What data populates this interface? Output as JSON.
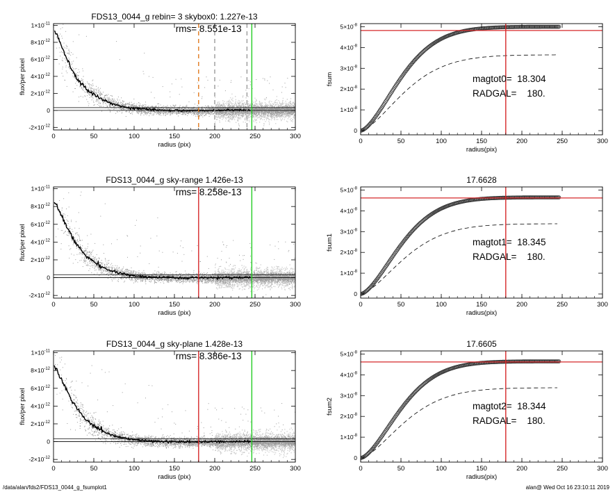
{
  "footer": {
    "path": "/data/alan/fds2/FDS13_0044_g_fsumplot1",
    "user_time": "alan@  Wed Oct 16 23:10:11 2019"
  },
  "colors": {
    "points": "#9a9a9a",
    "profile": "#000000",
    "radgal_line": "#d62728",
    "sky_line": "#22cc22",
    "skybox_dashed": "#e07a1f",
    "curve_marker": "#3a3a3a"
  },
  "chart_data": [
    {
      "type": "scatter",
      "title": "FDS13_0044_g rebin= 3    skybox0:  1.227e-13",
      "annotation": "rms= 8.551e-13",
      "xlabel": "radius (pix)",
      "ylabel": "flux/per pixel",
      "xlim": [
        0,
        300
      ],
      "ylim": [
        -2.3e-12,
        1.02e-11
      ],
      "x_ticks": [
        "0",
        "50",
        "100",
        "150",
        "200",
        "250",
        "300"
      ],
      "y_ticks": [
        {
          "value": -2e-12,
          "mant": "-2×10",
          "exp": "-12"
        },
        {
          "value": 0,
          "mant": "0",
          "exp": ""
        },
        {
          "value": 2e-12,
          "mant": "2×10",
          "exp": "-12"
        },
        {
          "value": 4e-12,
          "mant": "4×10",
          "exp": "-12"
        },
        {
          "value": 6e-12,
          "mant": "6×10",
          "exp": "-12"
        },
        {
          "value": 8e-12,
          "mant": "8×10",
          "exp": "-12"
        },
        {
          "value": 1e-11,
          "mant": "1×10",
          "exp": "-11"
        }
      ],
      "sky_level": 1.227e-13,
      "profile": [
        [
          1,
          9.3e-12
        ],
        [
          5,
          8.7e-12
        ],
        [
          10,
          7.6e-12
        ],
        [
          15,
          6.4e-12
        ],
        [
          20,
          5.4e-12
        ],
        [
          25,
          4.5e-12
        ],
        [
          30,
          3.7e-12
        ],
        [
          35,
          3.1e-12
        ],
        [
          40,
          2.6e-12
        ],
        [
          45,
          2.2e-12
        ],
        [
          50,
          1.85e-12
        ],
        [
          60,
          1.3e-12
        ],
        [
          70,
          9e-13
        ],
        [
          80,
          6e-13
        ],
        [
          90,
          4e-13
        ],
        [
          100,
          2.5e-13
        ],
        [
          120,
          1e-13
        ],
        [
          140,
          2e-14
        ],
        [
          160,
          -2e-14
        ],
        [
          180,
          -2e-14
        ],
        [
          200,
          0
        ],
        [
          220,
          2e-14
        ],
        [
          245,
          3e-14
        ]
      ],
      "vlines": [
        {
          "x": 180,
          "style": "dashed",
          "color": "#e07a1f"
        },
        {
          "x": 200,
          "style": "dashed",
          "color": "#9a9a9a"
        },
        {
          "x": 240,
          "style": "dashed",
          "color": "#9a9a9a"
        },
        {
          "x": 246,
          "style": "solid",
          "color": "#22cc22"
        }
      ],
      "hlines": []
    },
    {
      "type": "line",
      "title": "",
      "annotation": "magtot0=  18.304\nRADGAL=    180.",
      "xlabel": "radius(pix)",
      "ylabel": "fsum",
      "xlim": [
        0,
        300
      ],
      "ylim": [
        -2e-09,
        5.15e-08
      ],
      "x_ticks": [
        "0",
        "50",
        "100",
        "150",
        "200",
        "250",
        "300"
      ],
      "y_ticks": [
        {
          "value": 0,
          "mant": "0",
          "exp": ""
        },
        {
          "value": 1e-08,
          "mant": "1×10",
          "exp": "-8"
        },
        {
          "value": 2e-08,
          "mant": "2×10",
          "exp": "-8"
        },
        {
          "value": 3e-08,
          "mant": "3×10",
          "exp": "-8"
        },
        {
          "value": 4e-08,
          "mant": "4×10",
          "exp": "-8"
        },
        {
          "value": 5e-08,
          "mant": "5×10",
          "exp": "-8"
        }
      ],
      "curve_final": 5e-08,
      "dashed_final": 3.65e-08,
      "vlines": [
        {
          "x": 180,
          "style": "solid",
          "color": "#d62728"
        }
      ],
      "hlines": [
        {
          "y": 4.82e-08,
          "color": "#d62728"
        }
      ]
    },
    {
      "type": "scatter",
      "title": "FDS13_0044_g sky-range  1.426e-13",
      "annotation": "rms= 8.258e-13",
      "xlabel": "radius (pix)",
      "ylabel": "flux/per pixel",
      "xlim": [
        0,
        300
      ],
      "ylim": [
        -2.3e-12,
        1.02e-11
      ],
      "x_ticks": [
        "0",
        "50",
        "100",
        "150",
        "200",
        "250",
        "300"
      ],
      "y_ticks": [
        {
          "value": -2e-12,
          "mant": "-2×10",
          "exp": "-12"
        },
        {
          "value": 0,
          "mant": "0",
          "exp": ""
        },
        {
          "value": 2e-12,
          "mant": "2×10",
          "exp": "-12"
        },
        {
          "value": 4e-12,
          "mant": "4×10",
          "exp": "-12"
        },
        {
          "value": 6e-12,
          "mant": "6×10",
          "exp": "-12"
        },
        {
          "value": 8e-12,
          "mant": "8×10",
          "exp": "-12"
        },
        {
          "value": 1e-11,
          "mant": "1×10",
          "exp": "-11"
        }
      ],
      "sky_level": 1.426e-13,
      "profile": [
        [
          1,
          8.3e-12
        ],
        [
          5,
          7.9e-12
        ],
        [
          10,
          7e-12
        ],
        [
          15,
          6e-12
        ],
        [
          20,
          5.1e-12
        ],
        [
          25,
          4.3e-12
        ],
        [
          30,
          3.6e-12
        ],
        [
          35,
          3e-12
        ],
        [
          40,
          2.5e-12
        ],
        [
          45,
          2.1e-12
        ],
        [
          50,
          1.75e-12
        ],
        [
          60,
          1.2e-12
        ],
        [
          70,
          8e-13
        ],
        [
          80,
          5.5e-13
        ],
        [
          90,
          3.5e-13
        ],
        [
          100,
          2.2e-13
        ],
        [
          120,
          8e-14
        ],
        [
          140,
          2e-14
        ],
        [
          160,
          -2e-14
        ],
        [
          180,
          -2e-14
        ],
        [
          200,
          0
        ],
        [
          220,
          1e-14
        ],
        [
          245,
          2e-14
        ]
      ],
      "vlines": [
        {
          "x": 180,
          "style": "solid",
          "color": "#d62728"
        },
        {
          "x": 246,
          "style": "solid",
          "color": "#22cc22"
        }
      ],
      "hlines": []
    },
    {
      "type": "line",
      "title": "17.6628",
      "annotation": "magtot1=  18.345\nRADGAL=    180.",
      "xlabel": "radius(pix)",
      "ylabel": "fsum1",
      "xlim": [
        0,
        300
      ],
      "ylim": [
        -2e-09,
        5.15e-08
      ],
      "x_ticks": [
        "0",
        "50",
        "100",
        "150",
        "200",
        "250",
        "300"
      ],
      "y_ticks": [
        {
          "value": 0,
          "mant": "0",
          "exp": ""
        },
        {
          "value": 1e-08,
          "mant": "1×10",
          "exp": "-8"
        },
        {
          "value": 2e-08,
          "mant": "2×10",
          "exp": "-8"
        },
        {
          "value": 3e-08,
          "mant": "3×10",
          "exp": "-8"
        },
        {
          "value": 4e-08,
          "mant": "4×10",
          "exp": "-8"
        },
        {
          "value": 5e-08,
          "mant": "5×10",
          "exp": "-8"
        }
      ],
      "curve_final": 4.65e-08,
      "dashed_final": 3.38e-08,
      "vlines": [
        {
          "x": 180,
          "style": "solid",
          "color": "#d62728"
        }
      ],
      "hlines": [
        {
          "y": 4.62e-08,
          "color": "#d62728"
        }
      ]
    },
    {
      "type": "scatter",
      "title": "FDS13_0044_g sky-plane  1.428e-13",
      "annotation": "rms= 8.386e-13",
      "xlabel": "radius (pix)",
      "ylabel": "flux/per pixel",
      "xlim": [
        0,
        300
      ],
      "ylim": [
        -2.3e-12,
        1.02e-11
      ],
      "x_ticks": [
        "0",
        "50",
        "100",
        "150",
        "200",
        "250",
        "300"
      ],
      "y_ticks": [
        {
          "value": -2e-12,
          "mant": "-2×10",
          "exp": "-12"
        },
        {
          "value": 0,
          "mant": "0",
          "exp": ""
        },
        {
          "value": 2e-12,
          "mant": "2×10",
          "exp": "-12"
        },
        {
          "value": 4e-12,
          "mant": "4×10",
          "exp": "-12"
        },
        {
          "value": 6e-12,
          "mant": "6×10",
          "exp": "-12"
        },
        {
          "value": 8e-12,
          "mant": "8×10",
          "exp": "-12"
        },
        {
          "value": 1e-11,
          "mant": "1×10",
          "exp": "-11"
        }
      ],
      "sky_level": 1.428e-13,
      "profile": [
        [
          1,
          8.4e-12
        ],
        [
          5,
          7.9e-12
        ],
        [
          10,
          7e-12
        ],
        [
          15,
          6e-12
        ],
        [
          20,
          5.1e-12
        ],
        [
          25,
          4.3e-12
        ],
        [
          30,
          3.6e-12
        ],
        [
          35,
          3e-12
        ],
        [
          40,
          2.5e-12
        ],
        [
          45,
          2.1e-12
        ],
        [
          50,
          1.75e-12
        ],
        [
          60,
          1.2e-12
        ],
        [
          70,
          8e-13
        ],
        [
          80,
          5.5e-13
        ],
        [
          90,
          3.5e-13
        ],
        [
          100,
          2.2e-13
        ],
        [
          120,
          8e-14
        ],
        [
          140,
          2e-14
        ],
        [
          160,
          -2e-14
        ],
        [
          180,
          -2e-14
        ],
        [
          200,
          0
        ],
        [
          220,
          1e-14
        ],
        [
          245,
          2e-14
        ]
      ],
      "vlines": [
        {
          "x": 180,
          "style": "solid",
          "color": "#d62728"
        },
        {
          "x": 246,
          "style": "solid",
          "color": "#22cc22"
        }
      ],
      "hlines": []
    },
    {
      "type": "line",
      "title": "17.6605",
      "annotation": "magtot2=  18.344\nRADGAL=    180.",
      "xlabel": "radius(pix)",
      "ylabel": "fsum2",
      "xlim": [
        0,
        300
      ],
      "ylim": [
        -2e-09,
        5.15e-08
      ],
      "x_ticks": [
        "0",
        "50",
        "100",
        "150",
        "200",
        "250",
        "300"
      ],
      "y_ticks": [
        {
          "value": 0,
          "mant": "0",
          "exp": ""
        },
        {
          "value": 1e-08,
          "mant": "1×10",
          "exp": "-8"
        },
        {
          "value": 2e-08,
          "mant": "2×10",
          "exp": "-8"
        },
        {
          "value": 3e-08,
          "mant": "3×10",
          "exp": "-8"
        },
        {
          "value": 4e-08,
          "mant": "4×10",
          "exp": "-8"
        },
        {
          "value": 5e-08,
          "mant": "5×10",
          "exp": "-8"
        }
      ],
      "curve_final": 4.65e-08,
      "dashed_final": 3.38e-08,
      "vlines": [
        {
          "x": 180,
          "style": "solid",
          "color": "#d62728"
        }
      ],
      "hlines": [
        {
          "y": 4.62e-08,
          "color": "#d62728"
        }
      ]
    }
  ]
}
